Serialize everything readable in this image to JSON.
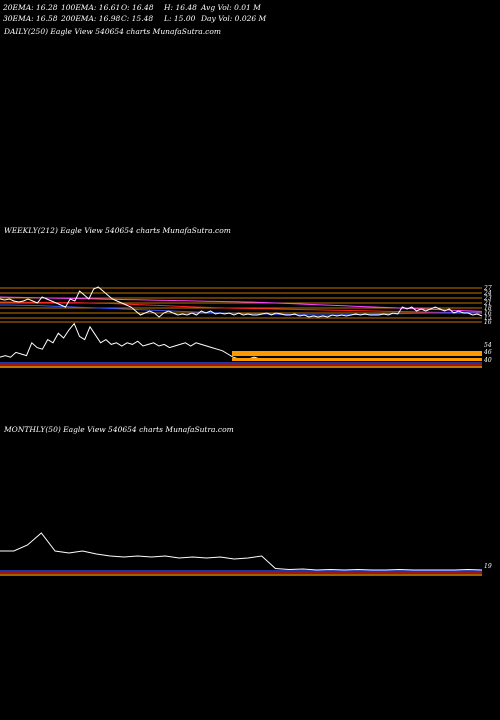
{
  "header": {
    "row1": [
      "20EMA: 16.28",
      "100EMA: 16.61",
      "O: 16.48",
      "H: 16.48",
      "Avg Vol: 0.01 M"
    ],
    "row2": [
      "30EMA: 16.58",
      "200EMA: 16.98",
      "C: 15.48",
      "L: 15.00",
      "Day Vol: 0.026  M"
    ]
  },
  "panels": {
    "daily_label": "DAILY(250) Eagle  View  540654  charts MunafaSutra.com",
    "weekly_label": "WEEKLY(212) Eagle  View  540654  charts MunafaSutra.com",
    "monthly_label": "MONTHLY(50) Eagle  View  540654  charts MunafaSutra.com"
  },
  "colors": {
    "price": "#ffffff",
    "ema_blue": "#3355ff",
    "ema_red": "#ff2222",
    "ema_pink": "#ff44ff",
    "level": "#ff9900"
  },
  "chart_data": [
    {
      "type": "line",
      "title": "WEEKLY(212) Eagle  View  540654  charts MunafaSutra.com",
      "price_levels": [
        "27",
        "24",
        "23",
        "21",
        "18",
        "16",
        "15",
        "16"
      ],
      "series": [
        {
          "values": [
            24,
            23.5,
            24,
            23,
            22.5,
            23,
            24,
            23,
            22,
            25,
            24,
            23,
            22,
            21,
            20,
            24,
            23,
            28,
            26,
            24,
            29,
            30,
            28,
            26,
            24,
            23,
            22,
            21,
            20,
            18,
            16,
            17,
            18,
            17,
            15,
            17,
            18,
            17,
            16,
            16.5,
            16,
            17,
            16,
            18,
            17,
            18,
            16.5,
            17,
            16.5,
            17,
            16,
            17,
            16,
            16.5,
            16,
            16,
            16.5,
            17,
            16,
            17,
            16.5,
            16,
            16,
            16.5,
            15.5,
            16,
            15,
            15.5,
            15,
            15.5,
            15,
            16,
            15.5,
            16,
            15.5,
            16,
            16.5,
            16,
            16.5,
            16,
            16,
            16,
            16.5,
            16,
            17,
            16.5,
            20,
            19,
            20,
            18,
            19,
            18,
            19,
            20,
            19,
            18,
            19,
            17,
            18,
            17,
            17,
            16,
            16.5,
            15.5
          ]
        },
        {
          "values": [
            22.5,
            22.5,
            22.4,
            22.4,
            22.3,
            22.3,
            22.2,
            22.2,
            22.1,
            22,
            21.9,
            21.8,
            21.6,
            21.4,
            21.2,
            21,
            20.8,
            20.6,
            20.4,
            20.2,
            20,
            19.8,
            19.6,
            19.5,
            19.4,
            19.3,
            19.2,
            19.1,
            19,
            18.9,
            18.8,
            18.7,
            18.6,
            18.5,
            18.4,
            18.3,
            18.2,
            18.1,
            18,
            17.9,
            17.8,
            17.7,
            17.6,
            17.5,
            17.4,
            17.3,
            17.2,
            17.1,
            17,
            16.9
          ]
        },
        {
          "values": [
            25,
            24.9,
            24.8,
            24.7,
            24.6,
            24.5,
            24.4,
            24.3,
            24.2,
            24.1,
            24,
            23.9,
            23.8,
            23.7,
            23.6,
            23.5,
            23.4,
            23.3,
            23.2,
            23.1,
            23,
            22.9,
            22.8,
            22.7,
            22.6,
            22.5,
            22.4,
            22.2,
            22,
            21.8,
            21.6,
            21.4,
            21.2,
            21,
            20.8,
            20.6,
            20.4,
            20.2,
            20,
            19.8,
            19.6,
            19.4,
            19.2,
            19,
            18.8,
            18.6,
            18.4,
            18.2,
            18,
            17.8
          ]
        },
        {
          "values": [
            21,
            21,
            20.9,
            20.8,
            20.7,
            20.5,
            20.3,
            20.1,
            19.9,
            19.7,
            19.5,
            19.3,
            19.1,
            18.9,
            18.7,
            18.5,
            18.3,
            18.1,
            17.9,
            17.7,
            17.5,
            17.3,
            17.1,
            16.9,
            16.8,
            16.7,
            16.6,
            16.5,
            16.4,
            16.3,
            16.2,
            16.1,
            16,
            16,
            16,
            16.1,
            16.2,
            16.3,
            16.4,
            16.5,
            16.6,
            16.7,
            16.8,
            16.9,
            17,
            17.1,
            17.2,
            17.3,
            17.4,
            17.5
          ]
        }
      ],
      "volume_levels": [
        "54",
        "46",
        "40"
      ],
      "volume": [
        3,
        4,
        3,
        6,
        5,
        4,
        12,
        9,
        8,
        14,
        12,
        18,
        15,
        20,
        24,
        16,
        14,
        22,
        17,
        12,
        14,
        11,
        12,
        10,
        12,
        11,
        13,
        10,
        11,
        12,
        10,
        11,
        9,
        10,
        11,
        12,
        10,
        12,
        11,
        10,
        9,
        8,
        7,
        5,
        3,
        2,
        1.5,
        2,
        3,
        2,
        2,
        1.5,
        1.5,
        2,
        1.5,
        1.5,
        1.5,
        2,
        1.5,
        1.5,
        1.5,
        1.5,
        1,
        1,
        1.5,
        1,
        1,
        1.5,
        1,
        1,
        1.5,
        1,
        1,
        1,
        1.5,
        1,
        1,
        1.5,
        1,
        1,
        1,
        1.5,
        2,
        1.5,
        1,
        1,
        1,
        1.5,
        1,
        1,
        1,
        1
      ]
    },
    {
      "type": "line",
      "title": "MONTHLY(50) Eagle  View  540654  charts MunafaSutra.com",
      "price_levels": [
        "19"
      ],
      "volume": [
        20,
        20,
        26,
        38,
        20,
        18,
        20,
        17,
        15,
        14,
        15,
        14,
        15,
        13,
        14,
        13,
        14,
        12,
        13,
        15,
        2.5,
        1.5,
        2,
        1,
        1.5,
        1,
        1.5,
        1,
        1,
        1.5,
        1,
        1,
        1,
        1,
        1.5,
        1
      ]
    }
  ]
}
